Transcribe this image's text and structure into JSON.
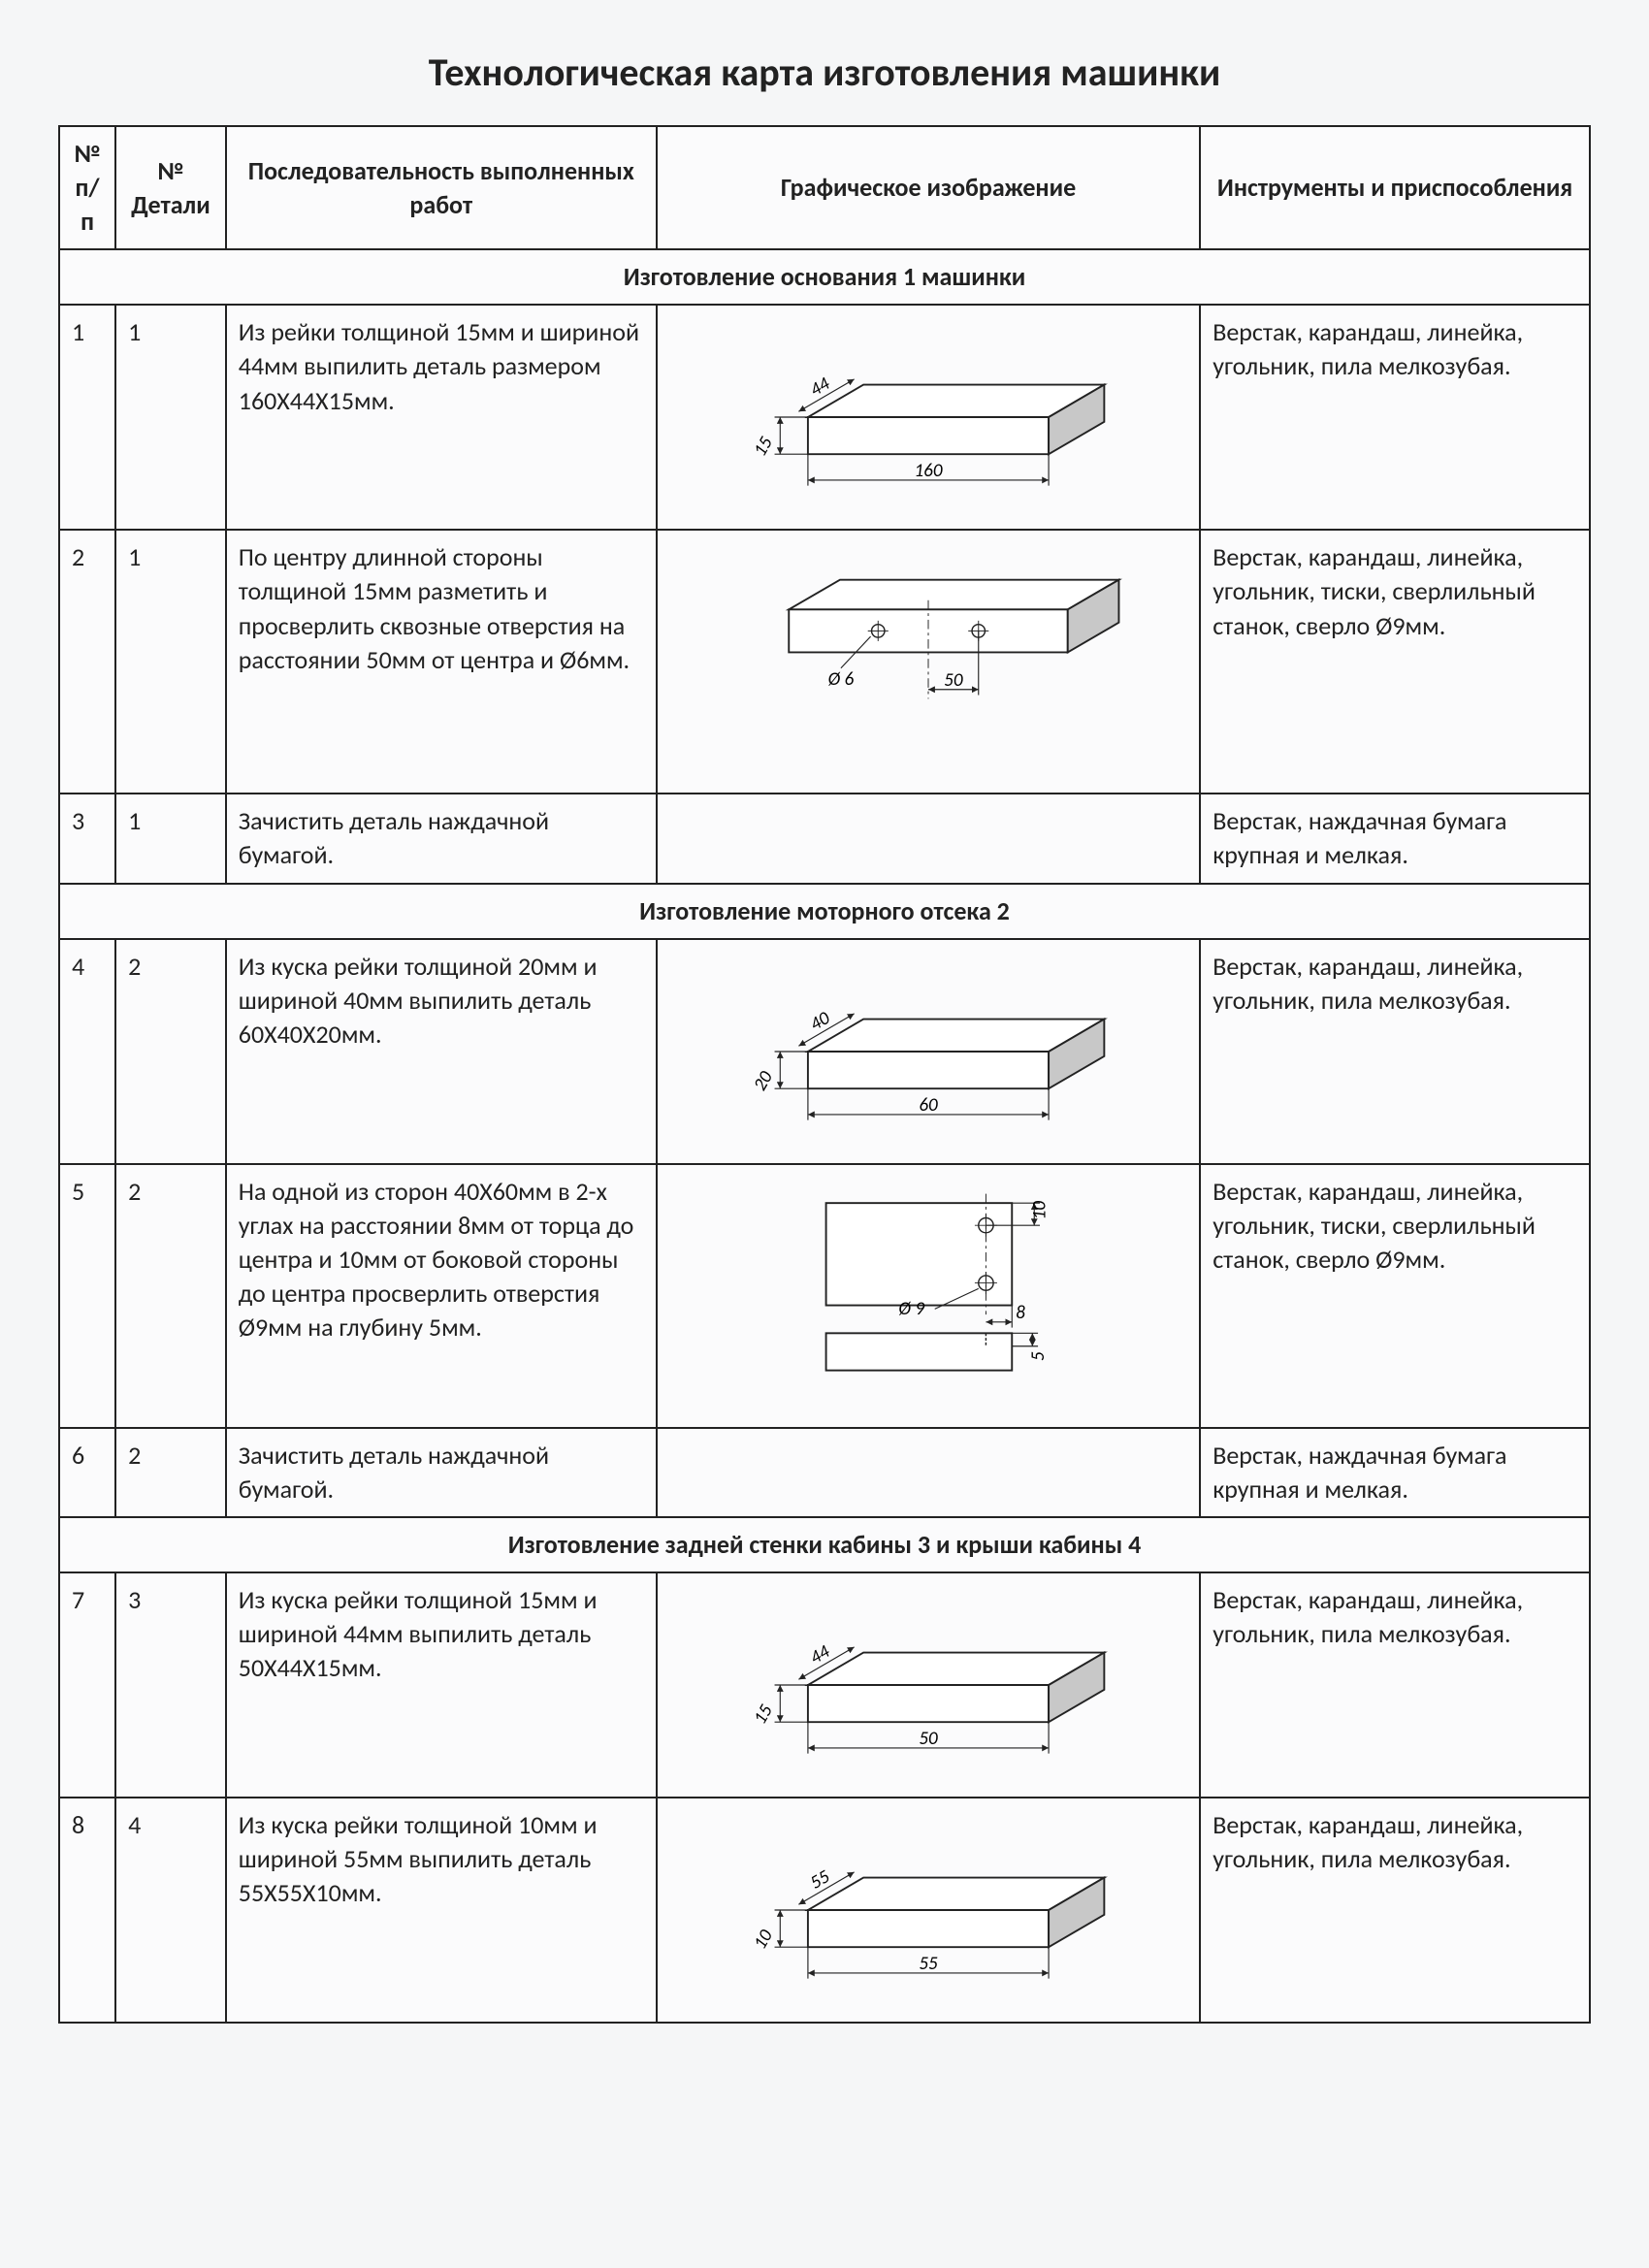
{
  "title": "Технологическая карта изготовления машинки",
  "headers": {
    "col1": "№ п/п",
    "col2": "№ Детали",
    "col3": "Последовательность выполненных работ",
    "col4": "Графическое изображение",
    "col5": "Инструменты и приспособления"
  },
  "sections": [
    {
      "title": "Изготовление основания 1 машинки",
      "rows": [
        {
          "n": "1",
          "det": "1",
          "seq": "Из рейки толщиной 15мм и шириной 44мм выпилить деталь размером 160Х44Х15мм.",
          "tools": "Верстак, карандаш, линейка, угольник, пила мелкозубая.",
          "diagram": {
            "type": "block3d",
            "L": 160,
            "W": 44,
            "H": 15,
            "label_L": "160",
            "label_W": "44",
            "label_H": "15"
          }
        },
        {
          "n": "2",
          "det": "1",
          "seq": "По центру длинной стороны толщиной 15мм разметить и просверлить сквозные отверстия на расстоянии 50мм от центра и Ø6мм.",
          "tools": "Верстак, карандаш, линейка, угольник, тиски, сверлильный станок, сверло Ø9мм.",
          "diagram": {
            "type": "block-holes",
            "label_dia": "Ø 6",
            "label_dist": "50"
          }
        },
        {
          "n": "3",
          "det": "1",
          "seq": "Зачистить деталь наждачной бумагой.",
          "tools": "Верстак, наждачная бумага крупная и мелкая.",
          "diagram": {
            "type": "none"
          }
        }
      ]
    },
    {
      "title": "Изготовление моторного отсека 2",
      "rows": [
        {
          "n": "4",
          "det": "2",
          "seq": "Из куска рейки толщиной 20мм и шириной 40мм выпилить деталь 60Х40Х20мм.",
          "tools": "Верстак, карандаш, линейка, угольник, пила мелкозубая.",
          "diagram": {
            "type": "block3d",
            "L": 60,
            "W": 40,
            "H": 20,
            "label_L": "60",
            "label_W": "40",
            "label_H": "20"
          }
        },
        {
          "n": "5",
          "det": "2",
          "seq": "На одной из сторон 40Х60мм в 2-х углах на расстоянии 8мм от торца до центра и 10мм от боковой стороны до центра просверлить отверстия Ø9мм на глубину 5мм.",
          "tools": "Верстак, карандаш, линейка, угольник, тиски, сверлильный станок, сверло Ø9мм.",
          "diagram": {
            "type": "top-side-holes",
            "label_dia": "Ø 9",
            "label_x": "8",
            "label_y": "10",
            "label_depth": "5"
          }
        },
        {
          "n": "6",
          "det": "2",
          "seq": "Зачистить деталь наждачной бумагой.",
          "tools": "Верстак, наждачная бумага крупная и мелкая.",
          "diagram": {
            "type": "none"
          }
        }
      ]
    },
    {
      "title": "Изготовление задней стенки кабины 3 и крыши кабины 4",
      "rows": [
        {
          "n": "7",
          "det": "3",
          "seq": "Из куска рейки толщиной 15мм и шириной 44мм выпилить деталь 50Х44Х15мм.",
          "tools": "Верстак, карандаш, линейка, угольник, пила мелкозубая.",
          "diagram": {
            "type": "block3d",
            "L": 50,
            "W": 44,
            "H": 15,
            "label_L": "50",
            "label_W": "44",
            "label_H": "15"
          }
        },
        {
          "n": "8",
          "det": "4",
          "seq": "Из куска рейки толщиной 10мм и шириной 55мм выпилить деталь 55Х55Х10мм.",
          "tools": "Верстак, карандаш, линейка, угольник, пила мелкозубая.",
          "diagram": {
            "type": "block3d",
            "L": 55,
            "W": 55,
            "H": 10,
            "label_L": "55",
            "label_W": "55",
            "label_H": "10"
          }
        }
      ]
    }
  ],
  "style": {
    "stroke": "#222222",
    "stroke_width": 2,
    "fill": "#ffffff",
    "hatch": "#c8c8c8",
    "dim_stroke": "#222222",
    "dim_width": 1.2
  }
}
